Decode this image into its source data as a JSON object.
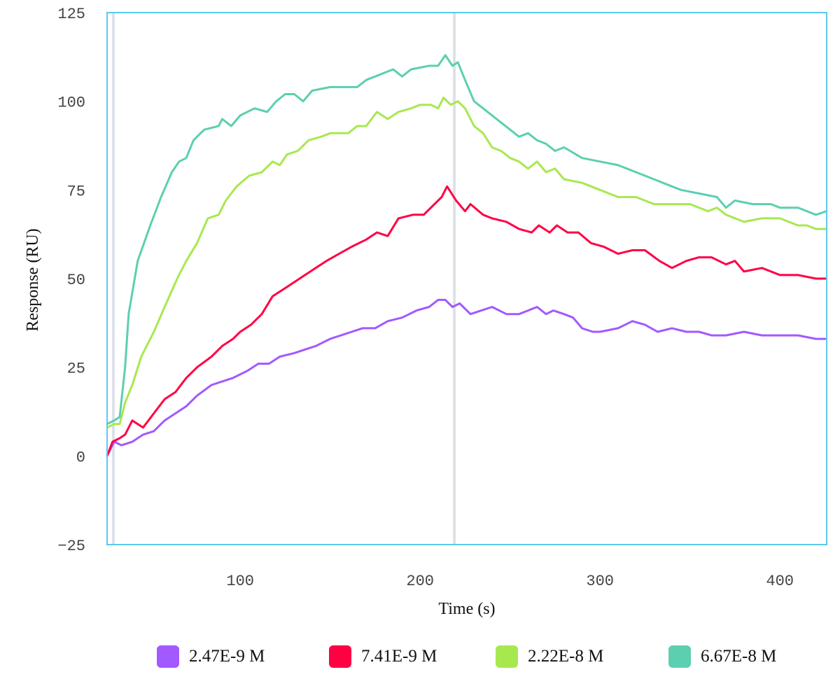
{
  "chart_data": {
    "type": "line",
    "title": "",
    "xlabel": "Time (s)",
    "ylabel": "Response (RU)",
    "xlim": [
      26,
      426
    ],
    "ylim": [
      -25,
      125
    ],
    "xticks": [
      100,
      200,
      300,
      400
    ],
    "xtick_labels": [
      "100",
      "200",
      "300",
      "400"
    ],
    "yticks": [
      -25,
      0,
      25,
      50,
      75,
      100,
      125
    ],
    "ytick_labels": [
      "−25",
      "0",
      "25",
      "50",
      "75",
      "100",
      "125"
    ],
    "vertical_markers": [
      29.5,
      219
    ],
    "grid": false,
    "legend_position": "bottom",
    "axis_color": "#5bc8f0",
    "marker_color": "#dde1e8",
    "series": [
      {
        "name": "2.47E-9 M",
        "color": "#a259ff",
        "x": [
          26,
          30,
          34,
          40,
          46,
          52,
          58,
          64,
          70,
          76,
          84,
          90,
          96,
          104,
          110,
          116,
          122,
          130,
          136,
          142,
          150,
          156,
          162,
          168,
          175,
          182,
          190,
          198,
          205,
          210,
          214,
          218,
          222,
          228,
          234,
          240,
          248,
          255,
          260,
          265,
          270,
          274,
          280,
          285,
          290,
          296,
          300,
          310,
          318,
          325,
          332,
          340,
          348,
          355,
          362,
          370,
          380,
          390,
          400,
          410,
          420,
          426
        ],
        "y": [
          0,
          4,
          3,
          4,
          6,
          7,
          10,
          12,
          14,
          17,
          20,
          21,
          22,
          24,
          26,
          26,
          28,
          29,
          30,
          31,
          33,
          34,
          35,
          36,
          36,
          38,
          39,
          41,
          42,
          44,
          44,
          42,
          43,
          40,
          41,
          42,
          40,
          40,
          41,
          42,
          40,
          41,
          40,
          39,
          36,
          35,
          35,
          36,
          38,
          37,
          35,
          36,
          35,
          35,
          34,
          34,
          35,
          34,
          34,
          34,
          33,
          33
        ]
      },
      {
        "name": "7.41E-9 M",
        "color": "#ff0044",
        "x": [
          26,
          29,
          33,
          36,
          40,
          46,
          52,
          58,
          64,
          70,
          76,
          84,
          90,
          96,
          100,
          106,
          112,
          118,
          124,
          130,
          136,
          142,
          148,
          155,
          162,
          170,
          176,
          182,
          188,
          196,
          202,
          208,
          212,
          215,
          220,
          225,
          228,
          235,
          240,
          248,
          255,
          262,
          266,
          272,
          276,
          282,
          288,
          295,
          302,
          310,
          318,
          325,
          333,
          340,
          348,
          355,
          362,
          370,
          375,
          380,
          390,
          400,
          410,
          420,
          426
        ],
        "y": [
          0,
          4,
          5,
          6,
          10,
          8,
          12,
          16,
          18,
          22,
          25,
          28,
          31,
          33,
          35,
          37,
          40,
          45,
          47,
          49,
          51,
          53,
          55,
          57,
          59,
          61,
          63,
          62,
          67,
          68,
          68,
          71,
          73,
          76,
          72,
          69,
          71,
          68,
          67,
          66,
          64,
          63,
          65,
          63,
          65,
          63,
          63,
          60,
          59,
          57,
          58,
          58,
          55,
          53,
          55,
          56,
          56,
          54,
          55,
          52,
          53,
          51,
          51,
          50,
          50
        ]
      },
      {
        "name": "2.22E-8 M",
        "color": "#a8e84f",
        "x": [
          26,
          30,
          33,
          36,
          40,
          45,
          52,
          58,
          65,
          70,
          76,
          82,
          88,
          92,
          98,
          105,
          112,
          118,
          122,
          126,
          132,
          138,
          145,
          150,
          160,
          165,
          170,
          176,
          182,
          188,
          195,
          200,
          206,
          210,
          213,
          217,
          221,
          225,
          230,
          235,
          240,
          245,
          250,
          255,
          260,
          265,
          270,
          275,
          280,
          290,
          300,
          310,
          320,
          330,
          340,
          350,
          360,
          365,
          370,
          380,
          390,
          400,
          410,
          415,
          420,
          426
        ],
        "y": [
          8,
          9,
          9,
          15,
          20,
          28,
          35,
          42,
          50,
          55,
          60,
          67,
          68,
          72,
          76,
          79,
          80,
          83,
          82,
          85,
          86,
          89,
          90,
          91,
          91,
          93,
          93,
          97,
          95,
          97,
          98,
          99,
          99,
          98,
          101,
          99,
          100,
          98,
          93,
          91,
          87,
          86,
          84,
          83,
          81,
          83,
          80,
          81,
          78,
          77,
          75,
          73,
          73,
          71,
          71,
          71,
          69,
          70,
          68,
          66,
          67,
          67,
          65,
          65,
          64,
          64
        ]
      },
      {
        "name": "6.67E-8 M",
        "color": "#5ccfb0",
        "x": [
          26,
          30,
          33,
          36,
          38,
          43,
          50,
          56,
          62,
          66,
          70,
          74,
          80,
          88,
          90,
          95,
          100,
          108,
          115,
          120,
          125,
          130,
          135,
          140,
          150,
          160,
          165,
          170,
          180,
          185,
          190,
          195,
          205,
          210,
          214,
          218,
          221,
          225,
          230,
          240,
          250,
          255,
          260,
          265,
          270,
          275,
          280,
          290,
          300,
          310,
          320,
          330,
          340,
          345,
          355,
          365,
          370,
          375,
          385,
          395,
          400,
          410,
          420,
          426
        ],
        "y": [
          9,
          10,
          11,
          25,
          40,
          55,
          65,
          73,
          80,
          83,
          84,
          89,
          92,
          93,
          95,
          93,
          96,
          98,
          97,
          100,
          102,
          102,
          100,
          103,
          104,
          104,
          104,
          106,
          108,
          109,
          107,
          109,
          110,
          110,
          113,
          110,
          111,
          106,
          100,
          96,
          92,
          90,
          91,
          89,
          88,
          86,
          87,
          84,
          83,
          82,
          80,
          78,
          76,
          75,
          74,
          73,
          70,
          72,
          71,
          71,
          70,
          70,
          68,
          69
        ]
      }
    ]
  }
}
